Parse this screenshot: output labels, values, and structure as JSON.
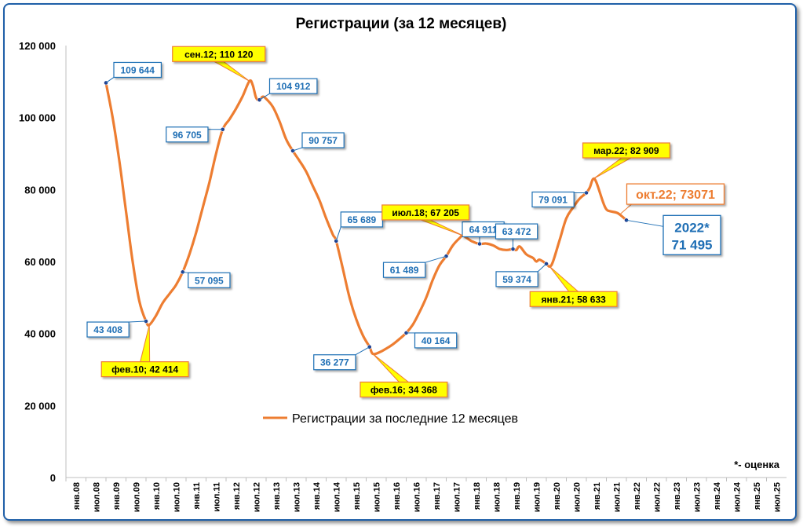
{
  "chart_data": {
    "type": "line",
    "title": "Регистрации (за 12 месяцев)",
    "xlabel": "",
    "ylabel": "",
    "ylim": [
      0,
      120000
    ],
    "grid": false,
    "legend_position": "center",
    "y_ticks": [
      0,
      20000,
      40000,
      60000,
      80000,
      100000,
      120000
    ],
    "y_tick_labels": [
      "0",
      "20 000",
      "40 000",
      "60 000",
      "80 000",
      "100 000",
      "120 000"
    ],
    "x_tick_labels": [
      "янв.08",
      "июл.08",
      "янв.09",
      "июл.09",
      "янв.10",
      "июл.10",
      "янв.11",
      "июл.11",
      "янв.12",
      "июл.12",
      "янв.13",
      "июл.13",
      "янв.14",
      "июл.14",
      "янв.15",
      "июл.15",
      "янв.16",
      "июл.16",
      "янв.17",
      "июл.17",
      "янв.18",
      "июл.18",
      "янв.19",
      "июл.19",
      "янв.20",
      "июл.20",
      "янв.21",
      "июл.21",
      "янв.22",
      "июл.22",
      "янв.23",
      "июл.23",
      "янв.24",
      "июл.24",
      "янв.25",
      "июл.25"
    ],
    "series": [
      {
        "name": "Регистрации за последние 12 месяцев",
        "color": "#ed7d31",
        "points": [
          {
            "x": 12,
            "y": 109644
          },
          {
            "x": 14,
            "y": 100000
          },
          {
            "x": 16,
            "y": 88000
          },
          {
            "x": 18,
            "y": 74000
          },
          {
            "x": 20,
            "y": 60000
          },
          {
            "x": 22,
            "y": 49000
          },
          {
            "x": 24,
            "y": 43408
          },
          {
            "x": 25,
            "y": 42414
          },
          {
            "x": 27,
            "y": 45000
          },
          {
            "x": 29,
            "y": 48500
          },
          {
            "x": 31,
            "y": 51000
          },
          {
            "x": 33,
            "y": 53500
          },
          {
            "x": 35,
            "y": 57095
          },
          {
            "x": 37,
            "y": 62000
          },
          {
            "x": 39,
            "y": 68000
          },
          {
            "x": 41,
            "y": 75000
          },
          {
            "x": 43,
            "y": 82000
          },
          {
            "x": 45,
            "y": 90000
          },
          {
            "x": 47,
            "y": 96705
          },
          {
            "x": 49,
            "y": 99500
          },
          {
            "x": 51,
            "y": 102500
          },
          {
            "x": 53,
            "y": 106000
          },
          {
            "x": 55,
            "y": 110120
          },
          {
            "x": 56,
            "y": 109000
          },
          {
            "x": 57,
            "y": 105500
          },
          {
            "x": 58,
            "y": 104912
          },
          {
            "x": 59,
            "y": 105800
          },
          {
            "x": 60,
            "y": 105200
          },
          {
            "x": 62,
            "y": 103000
          },
          {
            "x": 64,
            "y": 99000
          },
          {
            "x": 66,
            "y": 94000
          },
          {
            "x": 68,
            "y": 90757
          },
          {
            "x": 70,
            "y": 88000
          },
          {
            "x": 72,
            "y": 85000
          },
          {
            "x": 74,
            "y": 81000
          },
          {
            "x": 76,
            "y": 77000
          },
          {
            "x": 78,
            "y": 72000
          },
          {
            "x": 80,
            "y": 67500
          },
          {
            "x": 81,
            "y": 65689
          },
          {
            "x": 83,
            "y": 58000
          },
          {
            "x": 85,
            "y": 50000
          },
          {
            "x": 87,
            "y": 44000
          },
          {
            "x": 89,
            "y": 39500
          },
          {
            "x": 91,
            "y": 36277
          },
          {
            "x": 92,
            "y": 34368
          },
          {
            "x": 94,
            "y": 34800
          },
          {
            "x": 96,
            "y": 35800
          },
          {
            "x": 98,
            "y": 37000
          },
          {
            "x": 100,
            "y": 38500
          },
          {
            "x": 102,
            "y": 40164
          },
          {
            "x": 104,
            "y": 42500
          },
          {
            "x": 106,
            "y": 46000
          },
          {
            "x": 108,
            "y": 50000
          },
          {
            "x": 110,
            "y": 55000
          },
          {
            "x": 112,
            "y": 59000
          },
          {
            "x": 114,
            "y": 61489
          },
          {
            "x": 116,
            "y": 64500
          },
          {
            "x": 118,
            "y": 66500
          },
          {
            "x": 119,
            "y": 67205
          },
          {
            "x": 121,
            "y": 66000
          },
          {
            "x": 122,
            "y": 65500
          },
          {
            "x": 124,
            "y": 64911
          },
          {
            "x": 126,
            "y": 65000
          },
          {
            "x": 128,
            "y": 64500
          },
          {
            "x": 130,
            "y": 63500
          },
          {
            "x": 132,
            "y": 63200
          },
          {
            "x": 134,
            "y": 63472
          },
          {
            "x": 135,
            "y": 63200
          },
          {
            "x": 136,
            "y": 64200
          },
          {
            "x": 138,
            "y": 62000
          },
          {
            "x": 140,
            "y": 61000
          },
          {
            "x": 141,
            "y": 60000
          },
          {
            "x": 142,
            "y": 60500
          },
          {
            "x": 144,
            "y": 59374
          },
          {
            "x": 145,
            "y": 58633
          },
          {
            "x": 146,
            "y": 60000
          },
          {
            "x": 148,
            "y": 66000
          },
          {
            "x": 150,
            "y": 72000
          },
          {
            "x": 152,
            "y": 75000
          },
          {
            "x": 154,
            "y": 77500
          },
          {
            "x": 156,
            "y": 79091
          },
          {
            "x": 157,
            "y": 80500
          },
          {
            "x": 158,
            "y": 82909
          },
          {
            "x": 159,
            "y": 82000
          },
          {
            "x": 161,
            "y": 76500
          },
          {
            "x": 162,
            "y": 74500
          },
          {
            "x": 163,
            "y": 74000
          },
          {
            "x": 165,
            "y": 73600
          },
          {
            "x": 166,
            "y": 73071
          },
          {
            "x": 168,
            "y": 71495
          }
        ]
      }
    ],
    "markers": [
      {
        "x": 12,
        "y": 109644
      },
      {
        "x": 24,
        "y": 43408
      },
      {
        "x": 35,
        "y": 57095
      },
      {
        "x": 47,
        "y": 96705
      },
      {
        "x": 58,
        "y": 104912
      },
      {
        "x": 68,
        "y": 90757
      },
      {
        "x": 81,
        "y": 65689
      },
      {
        "x": 91,
        "y": 36277
      },
      {
        "x": 102,
        "y": 40164
      },
      {
        "x": 114,
        "y": 61489
      },
      {
        "x": 124,
        "y": 64911
      },
      {
        "x": 134,
        "y": 63472
      },
      {
        "x": 144,
        "y": 59374
      },
      {
        "x": 156,
        "y": 79091
      },
      {
        "x": 168,
        "y": 71495
      }
    ],
    "annotations_blue": [
      {
        "x": 12,
        "y": 109644,
        "text": "109 644"
      },
      {
        "x": 24,
        "y": 43408,
        "text": "43 408"
      },
      {
        "x": 35,
        "y": 57095,
        "text": "57 095"
      },
      {
        "x": 47,
        "y": 96705,
        "text": "96 705"
      },
      {
        "x": 58,
        "y": 104912,
        "text": "104 912"
      },
      {
        "x": 68,
        "y": 90757,
        "text": "90 757"
      },
      {
        "x": 81,
        "y": 65689,
        "text": "65 689"
      },
      {
        "x": 91,
        "y": 36277,
        "text": "36 277"
      },
      {
        "x": 102,
        "y": 40164,
        "text": "40 164"
      },
      {
        "x": 114,
        "y": 61489,
        "text": "61 489"
      },
      {
        "x": 124,
        "y": 64911,
        "text": "64 911"
      },
      {
        "x": 134,
        "y": 63472,
        "text": "63 472"
      },
      {
        "x": 144,
        "y": 59374,
        "text": "59 374"
      },
      {
        "x": 156,
        "y": 79091,
        "text": "79 091"
      }
    ],
    "annotations_yellow": [
      {
        "x": 25,
        "y": 42414,
        "text": "фев.10; 42 414"
      },
      {
        "x": 55,
        "y": 110120,
        "text": "сен.12; 110 120"
      },
      {
        "x": 92,
        "y": 34368,
        "text": "фев.16; 34 368"
      },
      {
        "x": 119,
        "y": 67205,
        "text": "июл.18; 67 205"
      },
      {
        "x": 145,
        "y": 58633,
        "text": "янв.21; 58 633"
      },
      {
        "x": 158,
        "y": 82909,
        "text": "мар.22; 82 909"
      }
    ],
    "annotation_orange": {
      "x": 166,
      "y": 73071,
      "text": "окт.22; 73071",
      "color": "#ed7d31"
    },
    "annotation_estimate": {
      "x": 168,
      "y": 71495,
      "line1": "2022*",
      "line2": "71 495",
      "color": "#1f6fb5"
    },
    "footnote": "*- оценка"
  },
  "colors": {
    "line": "#ed7d31",
    "label_blue": "#1f6fb5",
    "label_yellow_fill": "#ffff00",
    "label_yellow_border": "#ed7d31",
    "marker": "#1f3f8f",
    "frame": "#1f5fa8"
  }
}
